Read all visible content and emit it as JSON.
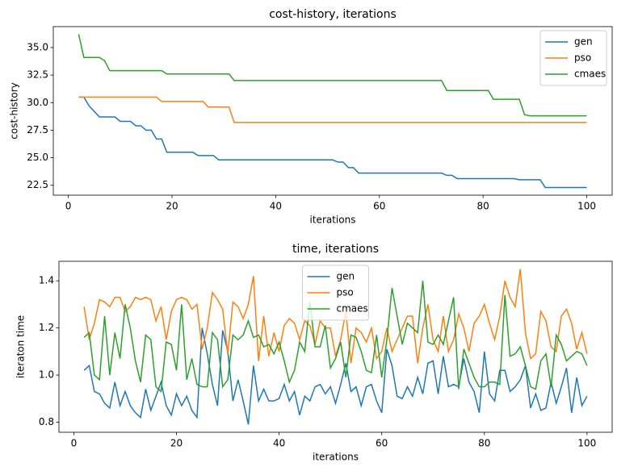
{
  "chart_data": [
    {
      "type": "line",
      "title": "cost-history, iterations",
      "xlabel": "iterations",
      "ylabel": "cost-history",
      "x": [
        2,
        3,
        4,
        5,
        6,
        7,
        8,
        9,
        10,
        11,
        12,
        13,
        14,
        15,
        16,
        17,
        18,
        19,
        20,
        21,
        22,
        23,
        24,
        25,
        26,
        27,
        28,
        29,
        30,
        31,
        32,
        33,
        34,
        35,
        36,
        37,
        38,
        39,
        40,
        41,
        42,
        43,
        44,
        45,
        46,
        47,
        48,
        49,
        50,
        51,
        52,
        53,
        54,
        55,
        56,
        57,
        58,
        59,
        60,
        61,
        62,
        63,
        64,
        65,
        66,
        67,
        68,
        69,
        70,
        71,
        72,
        73,
        74,
        75,
        76,
        77,
        78,
        79,
        80,
        81,
        82,
        83,
        84,
        85,
        86,
        87,
        88,
        89,
        90,
        91,
        92,
        93,
        94,
        95,
        96,
        97,
        98,
        99,
        100
      ],
      "series": [
        {
          "name": "gen",
          "color": "#1f77b4",
          "values": [
            30.5,
            30.5,
            29.7,
            29.2,
            28.7,
            28.7,
            28.7,
            28.7,
            28.3,
            28.3,
            28.3,
            27.9,
            27.9,
            27.5,
            27.5,
            26.7,
            26.7,
            25.5,
            25.5,
            25.5,
            25.5,
            25.5,
            25.5,
            25.2,
            25.2,
            25.2,
            25.2,
            24.8,
            24.8,
            24.8,
            24.8,
            24.8,
            24.8,
            24.8,
            24.8,
            24.8,
            24.8,
            24.8,
            24.8,
            24.8,
            24.8,
            24.8,
            24.8,
            24.8,
            24.8,
            24.8,
            24.8,
            24.8,
            24.8,
            24.8,
            24.6,
            24.6,
            24.1,
            24.1,
            23.6,
            23.6,
            23.6,
            23.6,
            23.6,
            23.6,
            23.6,
            23.6,
            23.6,
            23.6,
            23.6,
            23.6,
            23.6,
            23.6,
            23.6,
            23.6,
            23.6,
            23.4,
            23.4,
            23.1,
            23.1,
            23.1,
            23.1,
            23.1,
            23.1,
            23.1,
            23.1,
            23.1,
            23.1,
            23.1,
            23.1,
            23.0,
            23.0,
            23.0,
            23.0,
            23.0,
            22.3,
            22.3,
            22.3,
            22.3,
            22.3,
            22.3,
            22.3,
            22.3,
            22.3
          ]
        },
        {
          "name": "pso",
          "color": "#ff7f0e",
          "values": [
            30.5,
            30.5,
            30.5,
            30.5,
            30.5,
            30.5,
            30.5,
            30.5,
            30.5,
            30.5,
            30.5,
            30.5,
            30.5,
            30.5,
            30.5,
            30.5,
            30.1,
            30.1,
            30.1,
            30.1,
            30.1,
            30.1,
            30.1,
            30.1,
            30.1,
            29.6,
            29.6,
            29.6,
            29.6,
            29.6,
            28.2,
            28.2,
            28.2,
            28.2,
            28.2,
            28.2,
            28.2,
            28.2,
            28.2,
            28.2,
            28.2,
            28.2,
            28.2,
            28.2,
            28.2,
            28.2,
            28.2,
            28.2,
            28.2,
            28.2,
            28.2,
            28.2,
            28.2,
            28.2,
            28.2,
            28.2,
            28.2,
            28.2,
            28.2,
            28.2,
            28.2,
            28.2,
            28.2,
            28.2,
            28.2,
            28.2,
            28.2,
            28.2,
            28.2,
            28.2,
            28.2,
            28.2,
            28.2,
            28.2,
            28.2,
            28.2,
            28.2,
            28.2,
            28.2,
            28.2,
            28.2,
            28.2,
            28.2,
            28.2,
            28.2,
            28.2,
            28.2,
            28.2,
            28.2,
            28.2,
            28.2,
            28.2,
            28.2,
            28.2,
            28.2,
            28.2,
            28.2,
            28.2,
            28.2
          ]
        },
        {
          "name": "cmaes",
          "color": "#2ca02c",
          "values": [
            36.2,
            34.1,
            34.1,
            34.1,
            34.1,
            33.8,
            32.9,
            32.9,
            32.9,
            32.9,
            32.9,
            32.9,
            32.9,
            32.9,
            32.9,
            32.9,
            32.9,
            32.6,
            32.6,
            32.6,
            32.6,
            32.6,
            32.6,
            32.6,
            32.6,
            32.6,
            32.6,
            32.6,
            32.6,
            32.6,
            32.0,
            32.0,
            32.0,
            32.0,
            32.0,
            32.0,
            32.0,
            32.0,
            32.0,
            32.0,
            32.0,
            32.0,
            32.0,
            32.0,
            32.0,
            32.0,
            32.0,
            32.0,
            32.0,
            32.0,
            32.0,
            32.0,
            32.0,
            32.0,
            32.0,
            32.0,
            32.0,
            32.0,
            32.0,
            32.0,
            32.0,
            32.0,
            32.0,
            32.0,
            32.0,
            32.0,
            32.0,
            32.0,
            32.0,
            32.0,
            32.0,
            31.1,
            31.1,
            31.1,
            31.1,
            31.1,
            31.1,
            31.1,
            31.1,
            31.1,
            30.3,
            30.3,
            30.3,
            30.3,
            30.3,
            30.3,
            28.9,
            28.8,
            28.8,
            28.8,
            28.8,
            28.8,
            28.8,
            28.8,
            28.8,
            28.8,
            28.8,
            28.8,
            28.8
          ]
        }
      ],
      "xlim": [
        -2.9,
        104.9
      ],
      "xticks": [
        0,
        20,
        40,
        60,
        80,
        100
      ],
      "ylim": [
        21.6,
        36.9
      ],
      "yticks": [
        22.5,
        {
          "value": 25,
          "label": "25.0"
        },
        27.5,
        {
          "value": 30,
          "label": "30.0"
        },
        32.5,
        {
          "value": 35,
          "label": "35.0"
        }
      ],
      "legend": "upper right"
    },
    {
      "type": "line",
      "title": "time, iterations",
      "xlabel": "iterations",
      "ylabel": "iteraton time",
      "x": [
        2,
        3,
        4,
        5,
        6,
        7,
        8,
        9,
        10,
        11,
        12,
        13,
        14,
        15,
        16,
        17,
        18,
        19,
        20,
        21,
        22,
        23,
        24,
        25,
        26,
        27,
        28,
        29,
        30,
        31,
        32,
        33,
        34,
        35,
        36,
        37,
        38,
        39,
        40,
        41,
        42,
        43,
        44,
        45,
        46,
        47,
        48,
        49,
        50,
        51,
        52,
        53,
        54,
        55,
        56,
        57,
        58,
        59,
        60,
        61,
        62,
        63,
        64,
        65,
        66,
        67,
        68,
        69,
        70,
        71,
        72,
        73,
        74,
        75,
        76,
        77,
        78,
        79,
        80,
        81,
        82,
        83,
        84,
        85,
        86,
        87,
        88,
        89,
        90,
        91,
        92,
        93,
        94,
        95,
        96,
        97,
        98,
        99,
        100
      ],
      "series": [
        {
          "name": "gen",
          "color": "#1f77b4",
          "values": [
            1.02,
            1.04,
            0.93,
            0.92,
            0.88,
            0.86,
            0.97,
            0.87,
            0.93,
            0.87,
            0.84,
            0.82,
            0.94,
            0.85,
            0.91,
            0.97,
            0.87,
            0.83,
            0.92,
            0.87,
            0.91,
            0.85,
            0.82,
            1.2,
            1.09,
            0.96,
            0.87,
            1.19,
            1.1,
            0.89,
            0.98,
            0.89,
            0.79,
            1.04,
            0.89,
            0.94,
            0.89,
            0.89,
            0.9,
            0.96,
            0.89,
            0.93,
            0.83,
            0.91,
            0.89,
            0.95,
            0.96,
            0.92,
            0.95,
            0.88,
            0.96,
            1.05,
            0.93,
            0.95,
            0.87,
            0.95,
            0.96,
            0.89,
            0.84,
            1.11,
            1.04,
            0.91,
            0.9,
            0.95,
            0.91,
            0.99,
            0.92,
            1.05,
            1.06,
            0.92,
            1.08,
            0.95,
            0.96,
            0.95,
            1.07,
            0.97,
            0.93,
            0.84,
            1.1,
            0.92,
            0.89,
            1.02,
            1.02,
            0.93,
            0.95,
            0.98,
            1.04,
            0.86,
            0.92,
            0.85,
            0.86,
            0.97,
            0.88,
            0.95,
            1.03,
            0.84,
            0.99,
            0.87,
            0.91
          ]
        },
        {
          "name": "pso",
          "color": "#ff7f0e",
          "values": [
            1.29,
            1.15,
            1.22,
            1.32,
            1.31,
            1.29,
            1.33,
            1.33,
            1.27,
            1.29,
            1.33,
            1.32,
            1.33,
            1.32,
            1.23,
            1.29,
            1.15,
            1.27,
            1.32,
            1.33,
            1.32,
            1.28,
            1.3,
            1.11,
            1.2,
            1.35,
            1.32,
            1.28,
            1.09,
            1.31,
            1.29,
            1.24,
            1.3,
            1.42,
            1.06,
            1.25,
            1.08,
            1.18,
            1.1,
            1.21,
            1.24,
            1.22,
            1.15,
            1.23,
            1.21,
            1.13,
            1.23,
            1.2,
            1.2,
            1.08,
            1.15,
            1.27,
            1.05,
            1.2,
            1.18,
            1.14,
            1.2,
            1.07,
            1.1,
            1.2,
            1.1,
            1.15,
            1.2,
            1.25,
            1.25,
            1.05,
            1.2,
            1.3,
            1.15,
            1.1,
            1.25,
            1.1,
            1.15,
            1.26,
            1.2,
            1.1,
            1.22,
            1.25,
            1.3,
            1.22,
            1.15,
            1.25,
            1.4,
            1.33,
            1.29,
            1.45,
            1.18,
            1.07,
            1.09,
            1.27,
            1.23,
            1.12,
            1.1,
            1.25,
            1.28,
            1.22,
            1.11,
            1.18,
            1.09
          ]
        },
        {
          "name": "cmaes",
          "color": "#2ca02c",
          "values": [
            1.16,
            1.18,
            1.0,
            0.98,
            1.25,
            1.0,
            1.18,
            1.07,
            1.3,
            1.2,
            1.06,
            0.97,
            1.17,
            1.15,
            0.95,
            0.93,
            1.14,
            1.13,
            1.02,
            1.3,
            0.98,
            1.07,
            0.96,
            0.95,
            0.95,
            1.18,
            1.15,
            0.95,
            0.98,
            1.17,
            1.15,
            1.17,
            1.23,
            1.16,
            1.17,
            1.12,
            1.13,
            1.09,
            1.14,
            1.06,
            0.97,
            1.02,
            1.14,
            1.1,
            1.31,
            1.12,
            1.12,
            1.21,
            1.03,
            1.07,
            1.14,
            0.99,
            1.17,
            1.16,
            1.1,
            1.02,
            1.01,
            1.17,
            0.99,
            1.15,
            1.37,
            1.25,
            1.13,
            1.22,
            1.2,
            1.18,
            1.4,
            1.14,
            1.13,
            1.17,
            1.13,
            1.23,
            1.33,
            0.94,
            1.11,
            1.05,
            0.99,
            0.95,
            0.95,
            0.97,
            0.97,
            0.96,
            1.34,
            1.08,
            1.09,
            1.12,
            1.04,
            0.95,
            0.94,
            1.06,
            1.09,
            0.95,
            1.17,
            1.13,
            1.06,
            1.08,
            1.1,
            1.09,
            1.04
          ]
        }
      ],
      "xlim": [
        -2.9,
        104.9
      ],
      "xticks": [
        0,
        20,
        40,
        60,
        80,
        100
      ],
      "ylim": [
        0.757,
        1.483
      ],
      "yticks": [
        0.8,
        {
          "value": 1,
          "label": "1.0"
        },
        1.2,
        1.4
      ],
      "legend": "upper center"
    }
  ]
}
